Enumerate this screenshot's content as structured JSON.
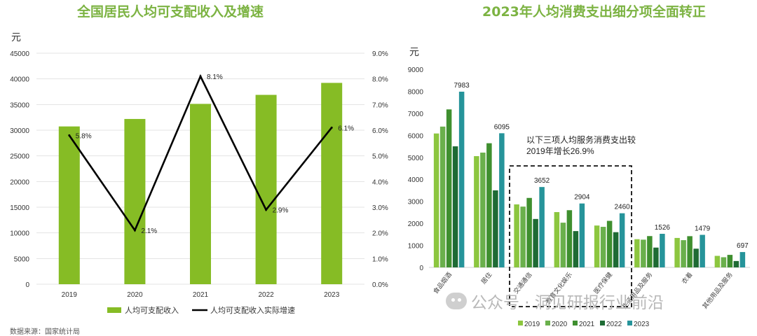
{
  "chart_data": [
    {
      "type": "bar+line",
      "title": "全国居民人均可支配收入及增速",
      "y_unit": "元",
      "categories": [
        "2019",
        "2020",
        "2021",
        "2022",
        "2023"
      ],
      "ylim": [
        0,
        45000
      ],
      "y2lim": [
        0,
        9
      ],
      "yticks": [
        "0",
        "5000",
        "10000",
        "15000",
        "20000",
        "25000",
        "30000",
        "35000",
        "40000",
        "45000"
      ],
      "y2ticks": [
        "0.0%",
        "1.0%",
        "2.0%",
        "3.0%",
        "4.0%",
        "5.0%",
        "6.0%",
        "7.0%",
        "8.0%",
        "9.0%"
      ],
      "series": [
        {
          "name": "人均可支配收入",
          "type": "bar",
          "axis": "left",
          "color": "#86bc25",
          "values": [
            30733,
            32189,
            35128,
            36883,
            39218
          ]
        },
        {
          "name": "人均可支配收入实际增速",
          "type": "line",
          "axis": "right",
          "color": "#000000",
          "values": [
            5.8,
            2.1,
            8.1,
            2.9,
            6.1
          ],
          "labels": [
            "5.8%",
            "2.1%",
            "8.1%",
            "2.9%",
            "6.1%"
          ]
        }
      ],
      "grid": true,
      "legend": "bottom"
    },
    {
      "type": "bar",
      "title": "2023年人均消费支出细分项全面转正",
      "y_unit": "元",
      "ylim": [
        0,
        9000
      ],
      "yticks": [
        "0",
        "1000",
        "2000",
        "3000",
        "4000",
        "5000",
        "6000",
        "7000",
        "8000",
        "9000"
      ],
      "categories": [
        "食品烟酒",
        "居住",
        "交通通信",
        "教育文化娱乐",
        "医疗保健",
        "生活用品及服务",
        "衣着",
        "其他用品及服务"
      ],
      "series": [
        {
          "name": "2019",
          "color": "#8cc63f",
          "values": [
            6084,
            5055,
            2862,
            2513,
            1902,
            1281,
            1338,
            524
          ]
        },
        {
          "name": "2020",
          "color": "#6ab04c",
          "values": [
            6397,
            5215,
            2762,
            2032,
            1843,
            1260,
            1238,
            462
          ]
        },
        {
          "name": "2021",
          "color": "#3f8f2f",
          "values": [
            7178,
            5641,
            3156,
            2599,
            2115,
            1423,
            1419,
            569
          ]
        },
        {
          "name": "2022",
          "color": "#1e6b34",
          "values": [
            5500,
            3500,
            2200,
            1650,
            1600,
            900,
            850,
            290
          ]
        },
        {
          "name": "2023",
          "color": "#26949a",
          "values": [
            7983,
            6095,
            3652,
            2904,
            2460,
            1526,
            1479,
            697
          ]
        }
      ],
      "value_labels": [
        "7983",
        "6095",
        "3652",
        "2904",
        "2460",
        "1526",
        "1479",
        "697"
      ],
      "annotation": "以下三项人均服务消费支出较2019年增长26.9%",
      "grid": false,
      "legend": "bottom"
    }
  ],
  "watermark": "公众号 · 洞见研报行业前沿",
  "source_note": "数据来源：国家统计局"
}
